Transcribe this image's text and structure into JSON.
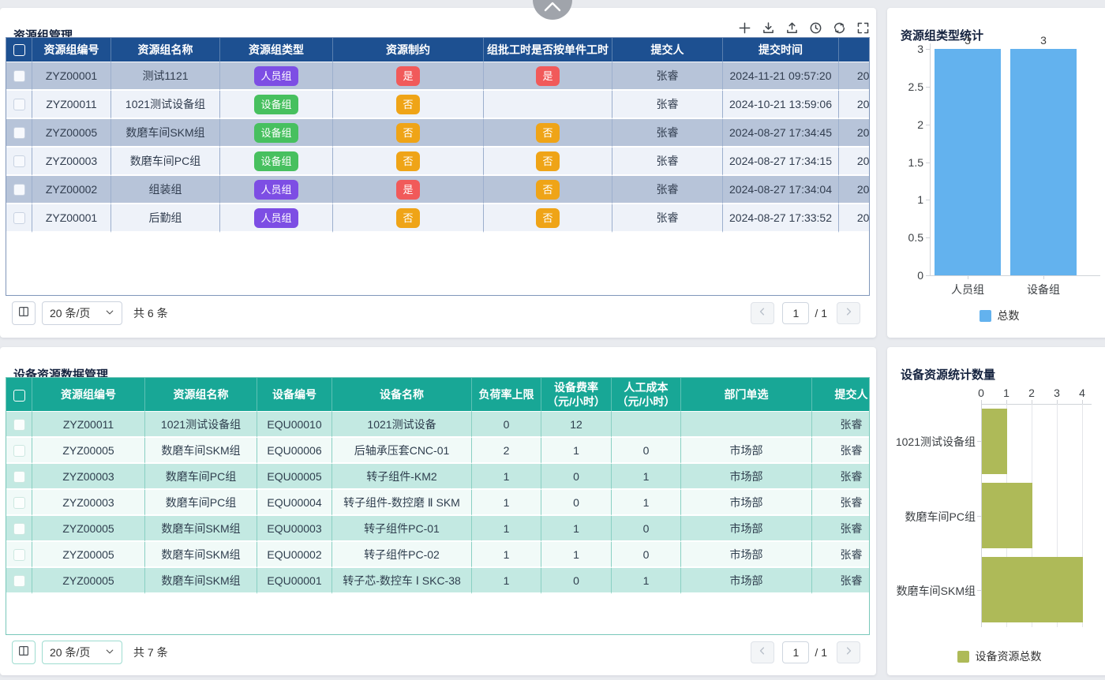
{
  "collapse_button": {
    "direction": "up"
  },
  "badge_colors": {
    "人员组": "#7d4ee4",
    "设备组": "#47c05f",
    "是": "#f15a5a",
    "否": "#efa417"
  },
  "panels": {
    "resource_groups": {
      "title": "资源组管理",
      "toolbar": [
        "plus",
        "import",
        "export",
        "history",
        "refresh",
        "fullscreen"
      ],
      "table": {
        "headers": [
          "",
          "资源组编号",
          "资源组名称",
          "资源组类型",
          "资源制约",
          "组批工时是否按单件工时",
          "提交人",
          "提交时间",
          ""
        ],
        "rows": [
          {
            "code": "ZYZ00001",
            "name": "测试1121",
            "type": "人员组",
            "constraint": "是",
            "batch": "是",
            "submitter": "张睿",
            "time": "2024-11-21 09:57:20",
            "extra": "202"
          },
          {
            "code": "ZYZ00011",
            "name": "1021测试设备组",
            "type": "设备组",
            "constraint": "否",
            "batch": "",
            "submitter": "张睿",
            "time": "2024-10-21 13:59:06",
            "extra": "202"
          },
          {
            "code": "ZYZ00005",
            "name": "数磨车间SKM组",
            "type": "设备组",
            "constraint": "否",
            "batch": "否",
            "submitter": "张睿",
            "time": "2024-08-27 17:34:45",
            "extra": "202"
          },
          {
            "code": "ZYZ00003",
            "name": "数磨车间PC组",
            "type": "设备组",
            "constraint": "否",
            "batch": "否",
            "submitter": "张睿",
            "time": "2024-08-27 17:34:15",
            "extra": "202"
          },
          {
            "code": "ZYZ00002",
            "name": "组装组",
            "type": "人员组",
            "constraint": "是",
            "batch": "否",
            "submitter": "张睿",
            "time": "2024-08-27 17:34:04",
            "extra": "202"
          },
          {
            "code": "ZYZ00001",
            "name": "后勤组",
            "type": "人员组",
            "constraint": "否",
            "batch": "否",
            "submitter": "张睿",
            "time": "2024-08-27 17:33:52",
            "extra": "202"
          }
        ]
      },
      "pagination": {
        "page_size": "20 条/页",
        "total": "共 6 条",
        "page": "1",
        "pages": "/ 1"
      }
    },
    "equipment_resources": {
      "title": "设备资源数据管理",
      "table": {
        "headers": [
          "",
          "资源组编号",
          "资源组名称",
          "设备编号",
          "设备名称",
          "负荷率上限",
          "设备费率\n（元/小时）",
          "人工成本\n（元/小时）",
          "部门单选",
          "提交人"
        ],
        "rows": [
          {
            "code": "ZYZ00011",
            "name": "1021测试设备组",
            "equip_code": "EQU00010",
            "equip_name": "1021测试设备",
            "load_limit": "0",
            "rate": "12",
            "labor_cost": "",
            "department": "",
            "submitter": "张睿"
          },
          {
            "code": "ZYZ00005",
            "name": "数磨车间SKM组",
            "equip_code": "EQU00006",
            "equip_name": "后轴承压套CNC-01",
            "load_limit": "2",
            "rate": "1",
            "labor_cost": "0",
            "department": "市场部",
            "submitter": "张睿"
          },
          {
            "code": "ZYZ00003",
            "name": "数磨车间PC组",
            "equip_code": "EQU00005",
            "equip_name": "转子组件-KM2",
            "load_limit": "1",
            "rate": "0",
            "labor_cost": "1",
            "department": "市场部",
            "submitter": "张睿"
          },
          {
            "code": "ZYZ00003",
            "name": "数磨车间PC组",
            "equip_code": "EQU00004",
            "equip_name": "转子组件-数控磨 Ⅱ SKM",
            "load_limit": "1",
            "rate": "0",
            "labor_cost": "1",
            "department": "市场部",
            "submitter": "张睿"
          },
          {
            "code": "ZYZ00005",
            "name": "数磨车间SKM组",
            "equip_code": "EQU00003",
            "equip_name": "转子组件PC-01",
            "load_limit": "1",
            "rate": "1",
            "labor_cost": "0",
            "department": "市场部",
            "submitter": "张睿"
          },
          {
            "code": "ZYZ00005",
            "name": "数磨车间SKM组",
            "equip_code": "EQU00002",
            "equip_name": "转子组件PC-02",
            "load_limit": "1",
            "rate": "1",
            "labor_cost": "0",
            "department": "市场部",
            "submitter": "张睿"
          },
          {
            "code": "ZYZ00005",
            "name": "数磨车间SKM组",
            "equip_code": "EQU00001",
            "equip_name": "转子芯-数控车 Ⅰ SKC-38",
            "load_limit": "1",
            "rate": "0",
            "labor_cost": "1",
            "department": "市场部",
            "submitter": "张睿"
          }
        ]
      },
      "pagination": {
        "page_size": "20 条/页",
        "total": "共 7 条",
        "page": "1",
        "pages": "/ 1"
      }
    }
  },
  "chart_data": [
    {
      "type": "bar",
      "title": "资源组类型统计",
      "categories": [
        "人员组",
        "设备组"
      ],
      "series": [
        {
          "name": "总数",
          "values": [
            3,
            3
          ]
        }
      ],
      "ylim": [
        0,
        3
      ],
      "yticks": [
        0,
        0.5,
        1,
        1.5,
        2,
        2.5,
        3
      ],
      "value_labels": true,
      "legend_position": "bottom",
      "color": "#63b2ee",
      "grid": false
    },
    {
      "type": "bar-horizontal",
      "title": "设备资源统计数量",
      "categories": [
        "1021测试设备组",
        "数磨车间PC组",
        "数磨车间SKM组"
      ],
      "series": [
        {
          "name": "设备资源总数",
          "values": [
            1,
            2,
            4
          ]
        }
      ],
      "xlim": [
        0,
        4
      ],
      "xticks": [
        0,
        1,
        2,
        3,
        4
      ],
      "value_labels": false,
      "legend_position": "bottom",
      "color": "#aeba58",
      "grid": true
    }
  ]
}
